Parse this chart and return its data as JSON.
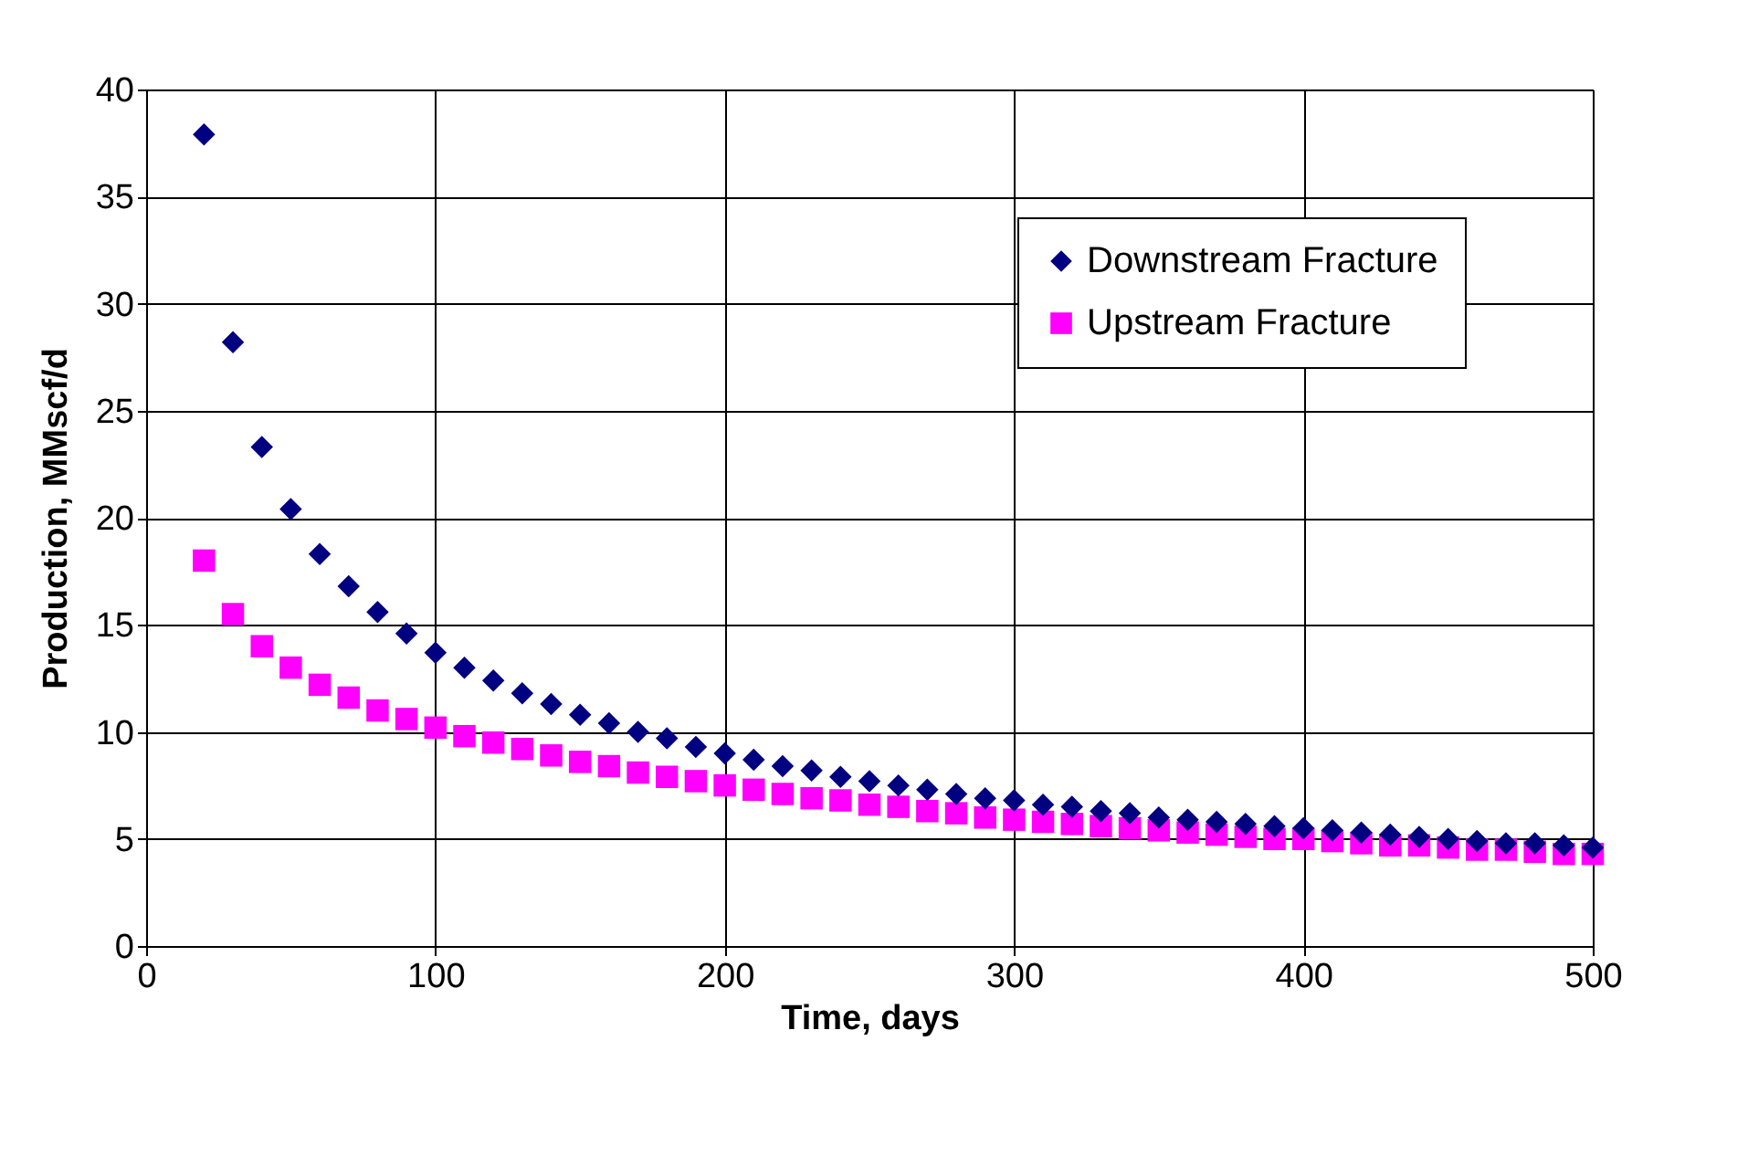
{
  "chart_data": {
    "type": "scatter",
    "xlabel": "Time, days",
    "ylabel": "Production, MMscf/d",
    "x": [
      20,
      30,
      40,
      50,
      60,
      70,
      80,
      90,
      100,
      110,
      120,
      130,
      140,
      150,
      160,
      170,
      180,
      190,
      200,
      210,
      220,
      230,
      240,
      250,
      260,
      270,
      280,
      290,
      300,
      310,
      320,
      330,
      340,
      350,
      360,
      370,
      380,
      390,
      400,
      410,
      420,
      430,
      440,
      450,
      460,
      470,
      480,
      490,
      500
    ],
    "series": [
      {
        "name": "Downstream Fracture",
        "color": "#000080",
        "marker": "diamond",
        "values": [
          37.9,
          28.2,
          23.3,
          20.4,
          18.3,
          16.8,
          15.6,
          14.6,
          13.7,
          13.0,
          12.4,
          11.8,
          11.3,
          10.8,
          10.4,
          10.0,
          9.7,
          9.3,
          9.0,
          8.7,
          8.4,
          8.2,
          7.9,
          7.7,
          7.5,
          7.3,
          7.1,
          6.9,
          6.8,
          6.6,
          6.5,
          6.3,
          6.2,
          6.0,
          5.9,
          5.8,
          5.7,
          5.6,
          5.5,
          5.4,
          5.3,
          5.2,
          5.1,
          5.0,
          4.9,
          4.8,
          4.8,
          4.7,
          4.6
        ]
      },
      {
        "name": "Upstream  Fracture",
        "color": "#ff00ff",
        "marker": "square",
        "values": [
          18.0,
          15.5,
          14.0,
          13.0,
          12.2,
          11.6,
          11.0,
          10.6,
          10.2,
          9.8,
          9.5,
          9.2,
          8.9,
          8.6,
          8.4,
          8.1,
          7.9,
          7.7,
          7.5,
          7.3,
          7.1,
          6.9,
          6.8,
          6.6,
          6.5,
          6.3,
          6.2,
          6.0,
          5.9,
          5.8,
          5.7,
          5.6,
          5.5,
          5.4,
          5.3,
          5.2,
          5.1,
          5.0,
          5.0,
          4.9,
          4.8,
          4.7,
          4.7,
          4.6,
          4.5,
          4.5,
          4.4,
          4.3,
          4.3
        ]
      }
    ],
    "xlim": [
      0,
      500
    ],
    "xticks": [
      0,
      100,
      200,
      300,
      400,
      500
    ],
    "ylim": [
      0,
      40
    ],
    "yticks": [
      0,
      5,
      10,
      15,
      20,
      25,
      30,
      35,
      40
    ],
    "grid": true,
    "legend": "top right"
  }
}
